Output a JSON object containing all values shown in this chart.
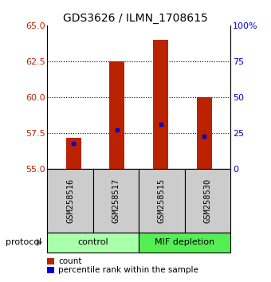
{
  "title": "GDS3626 / ILMN_1708615",
  "samples": [
    "GSM258516",
    "GSM258517",
    "GSM258515",
    "GSM258530"
  ],
  "bar_tops": [
    57.2,
    62.5,
    64.0,
    60.0
  ],
  "bar_bottom": 55.0,
  "percentile_values": [
    56.8,
    57.75,
    58.1,
    57.3
  ],
  "ymin": 55,
  "ymax": 65,
  "yticks": [
    55,
    57.5,
    60,
    62.5,
    65
  ],
  "right_yticks": [
    0,
    25,
    50,
    75,
    100
  ],
  "bar_color": "#bb2200",
  "percentile_color": "#0000cc",
  "groups": [
    {
      "label": "control",
      "sample_indices": [
        0,
        1
      ],
      "color": "#aaffaa"
    },
    {
      "label": "MIF depletion",
      "sample_indices": [
        2,
        3
      ],
      "color": "#55ee55"
    }
  ],
  "sample_box_color": "#cccccc",
  "bar_width": 0.35,
  "protocol_label": "protocol"
}
